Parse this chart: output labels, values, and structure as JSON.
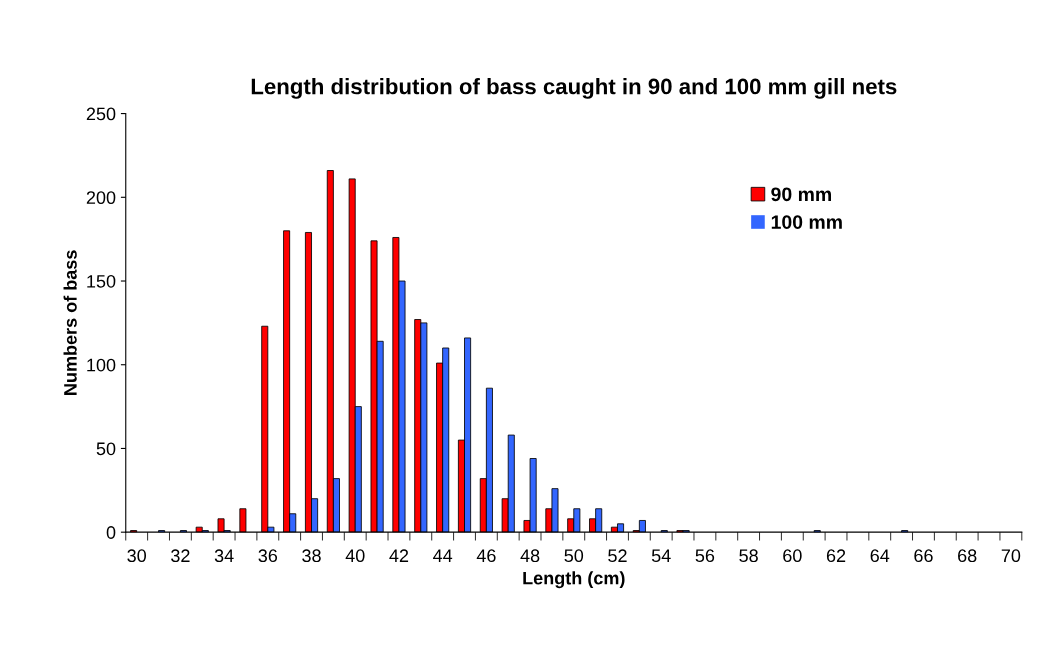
{
  "chart_data": {
    "type": "bar",
    "title": "Length distribution of bass caught in 90 and 100 mm gill nets",
    "xlabel": "Length (cm)",
    "ylabel": "Numbers of bass",
    "categories": [
      "30",
      null,
      "32",
      null,
      "34",
      null,
      "36",
      null,
      "38",
      null,
      "40",
      null,
      "42",
      null,
      "44",
      null,
      "46",
      null,
      "48",
      null,
      "50",
      null,
      "52",
      null,
      "54",
      null,
      "56",
      null,
      "58",
      null,
      "60",
      null,
      "62",
      null,
      "64",
      null,
      "66",
      null,
      "68",
      null,
      "70"
    ],
    "series": [
      {
        "name": "90 mm",
        "color": "#ff0000",
        "values": [
          1,
          0,
          0,
          3,
          8,
          14,
          123,
          180,
          179,
          216,
          211,
          174,
          176,
          127,
          101,
          55,
          32,
          20,
          7,
          14,
          8,
          8,
          3,
          1,
          0,
          1,
          0,
          0,
          0,
          0,
          0,
          0,
          0,
          0,
          0,
          0,
          0,
          0,
          0,
          0,
          0
        ]
      },
      {
        "name": "100 mm",
        "color": "#3366ff",
        "values": [
          0,
          1,
          1,
          1,
          1,
          0,
          3,
          11,
          20,
          32,
          75,
          114,
          150,
          125,
          110,
          116,
          86,
          58,
          44,
          26,
          14,
          14,
          5,
          7,
          1,
          1,
          0,
          0,
          0,
          0,
          0,
          1,
          0,
          0,
          0,
          1,
          0,
          0,
          0,
          0,
          0
        ]
      }
    ],
    "ylim": [
      0,
      250
    ],
    "yticks": [
      0,
      50,
      100,
      150,
      200,
      250
    ],
    "grid": false,
    "legend": "right"
  }
}
